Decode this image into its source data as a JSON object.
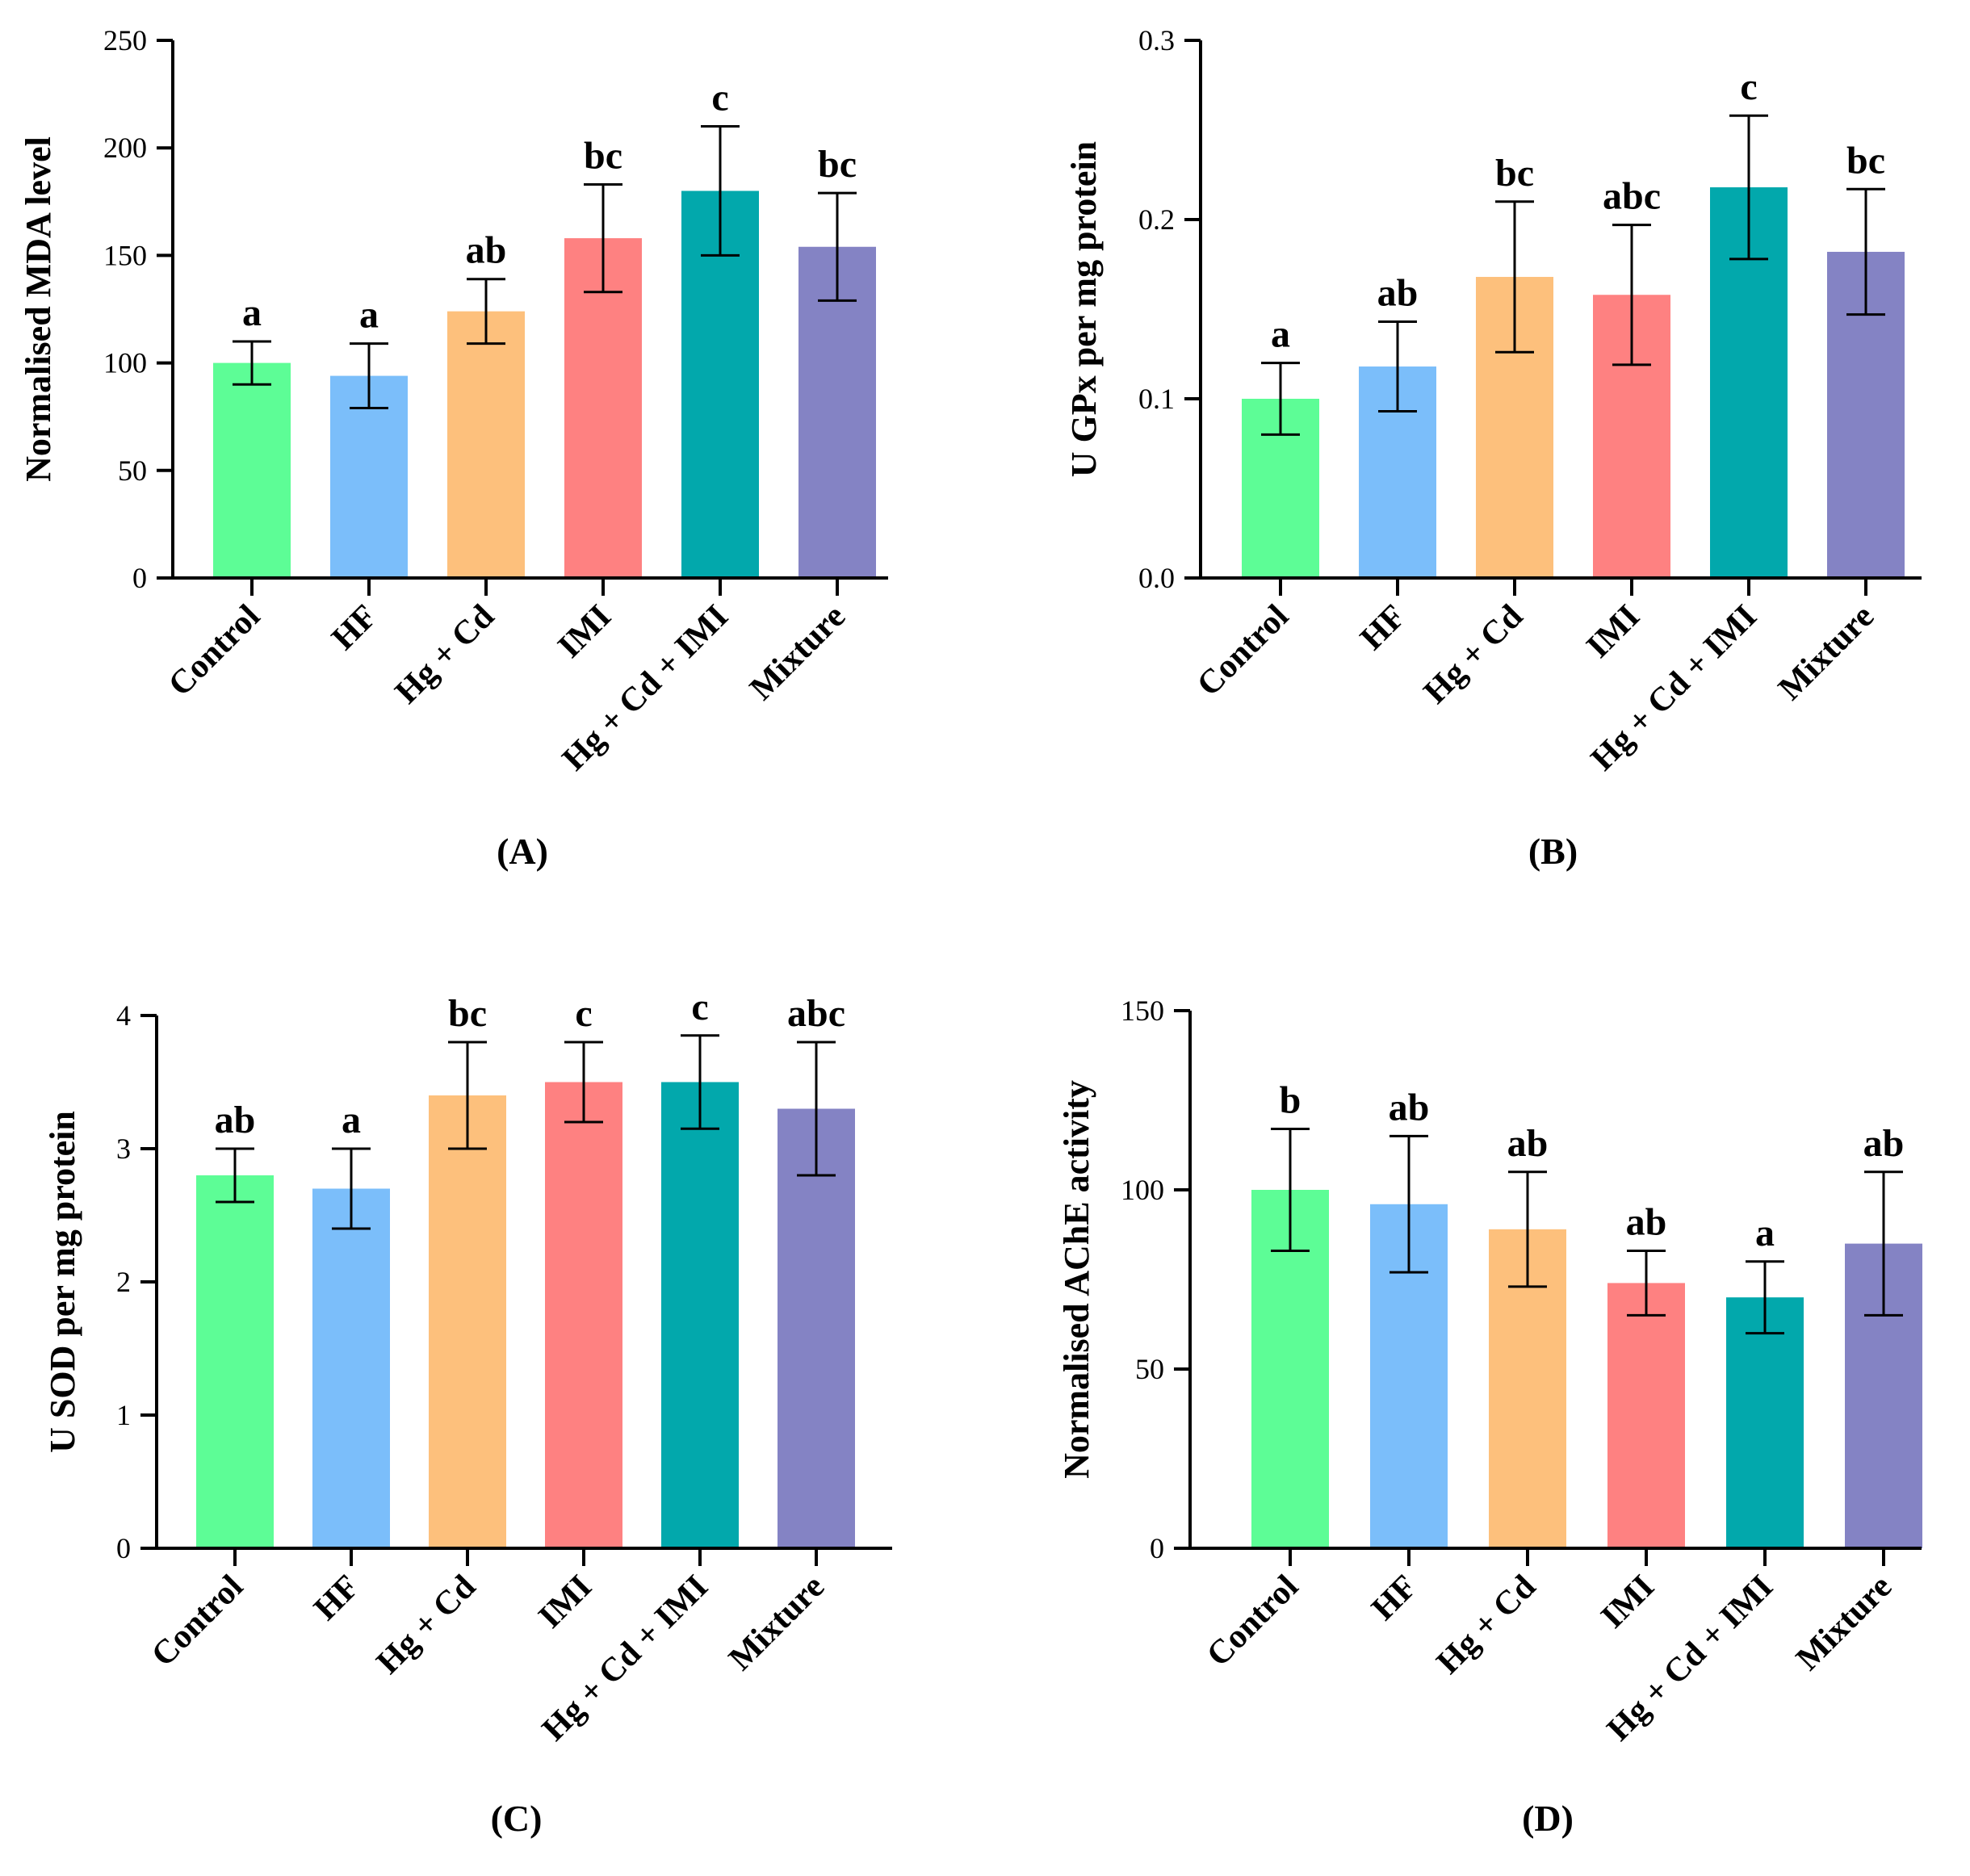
{
  "colors": [
    "#5dfd96",
    "#7bbefa",
    "#fdc07c",
    "#fe8181",
    "#02a8ac",
    "#8483c4"
  ],
  "chart_data": [
    {
      "type": "bar",
      "panel_label": "(A)",
      "ylabel": "Normalised MDA level",
      "xlabel": "",
      "categories": [
        "Control",
        "HF",
        "Hg + Cd",
        "IMI",
        "Hg + Cd + IMI",
        "Mixture"
      ],
      "values": [
        100,
        94,
        124,
        158,
        180,
        154
      ],
      "errors": [
        10,
        15,
        15,
        25,
        30,
        25
      ],
      "significance": [
        "a",
        "a",
        "ab",
        "bc",
        "c",
        "bc"
      ],
      "ylim": [
        0,
        250
      ],
      "yticks": [
        0,
        50,
        100,
        150,
        200,
        250
      ],
      "ytick_labels": [
        "0",
        "50",
        "100",
        "150",
        "200",
        "250"
      ]
    },
    {
      "type": "bar",
      "panel_label": "(B)",
      "ylabel": "U GPx per mg protein",
      "xlabel": "",
      "categories": [
        "Control",
        "HF",
        "Hg + Cd",
        "IMI",
        "Hg + Cd + IMI",
        "Mixture"
      ],
      "values": [
        0.1,
        0.118,
        0.168,
        0.158,
        0.218,
        0.182
      ],
      "errors": [
        0.02,
        0.025,
        0.042,
        0.039,
        0.04,
        0.035
      ],
      "significance": [
        "a",
        "ab",
        "bc",
        "abc",
        "c",
        "bc"
      ],
      "ylim": [
        0,
        0.3
      ],
      "yticks": [
        0,
        0.1,
        0.2,
        0.3
      ],
      "ytick_labels": [
        "0.0",
        "0.1",
        "0.2",
        "0.3"
      ]
    },
    {
      "type": "bar",
      "panel_label": "(C)",
      "ylabel": "U SOD per mg protein",
      "xlabel": "",
      "categories": [
        "Control",
        "HF",
        "Hg + Cd",
        "IMI",
        "Hg + Cd + IMI",
        "Mixture"
      ],
      "values": [
        2.8,
        2.7,
        3.4,
        3.5,
        3.5,
        3.3
      ],
      "errors": [
        0.2,
        0.3,
        0.4,
        0.3,
        0.35,
        0.5
      ],
      "significance": [
        "ab",
        "a",
        "bc",
        "c",
        "c",
        "abc"
      ],
      "ylim": [
        0,
        4
      ],
      "yticks": [
        0,
        1,
        2,
        3,
        4
      ],
      "ytick_labels": [
        "0",
        "1",
        "2",
        "3",
        "4"
      ]
    },
    {
      "type": "bar",
      "panel_label": "(D)",
      "ylabel": "Normalised AChE activity",
      "xlabel": "",
      "categories": [
        "Control",
        "HF",
        "Hg + Cd",
        "IMI",
        "Hg + Cd + IMI",
        "Mixture"
      ],
      "values": [
        100,
        96,
        89,
        74,
        70,
        85
      ],
      "errors": [
        17,
        19,
        16,
        9,
        10,
        20
      ],
      "significance": [
        "b",
        "ab",
        "ab",
        "ab",
        "a",
        "ab"
      ],
      "ylim": [
        0,
        150
      ],
      "yticks": [
        0,
        50,
        100,
        150
      ],
      "ytick_labels": [
        "0",
        "50",
        "100",
        "150"
      ]
    }
  ]
}
